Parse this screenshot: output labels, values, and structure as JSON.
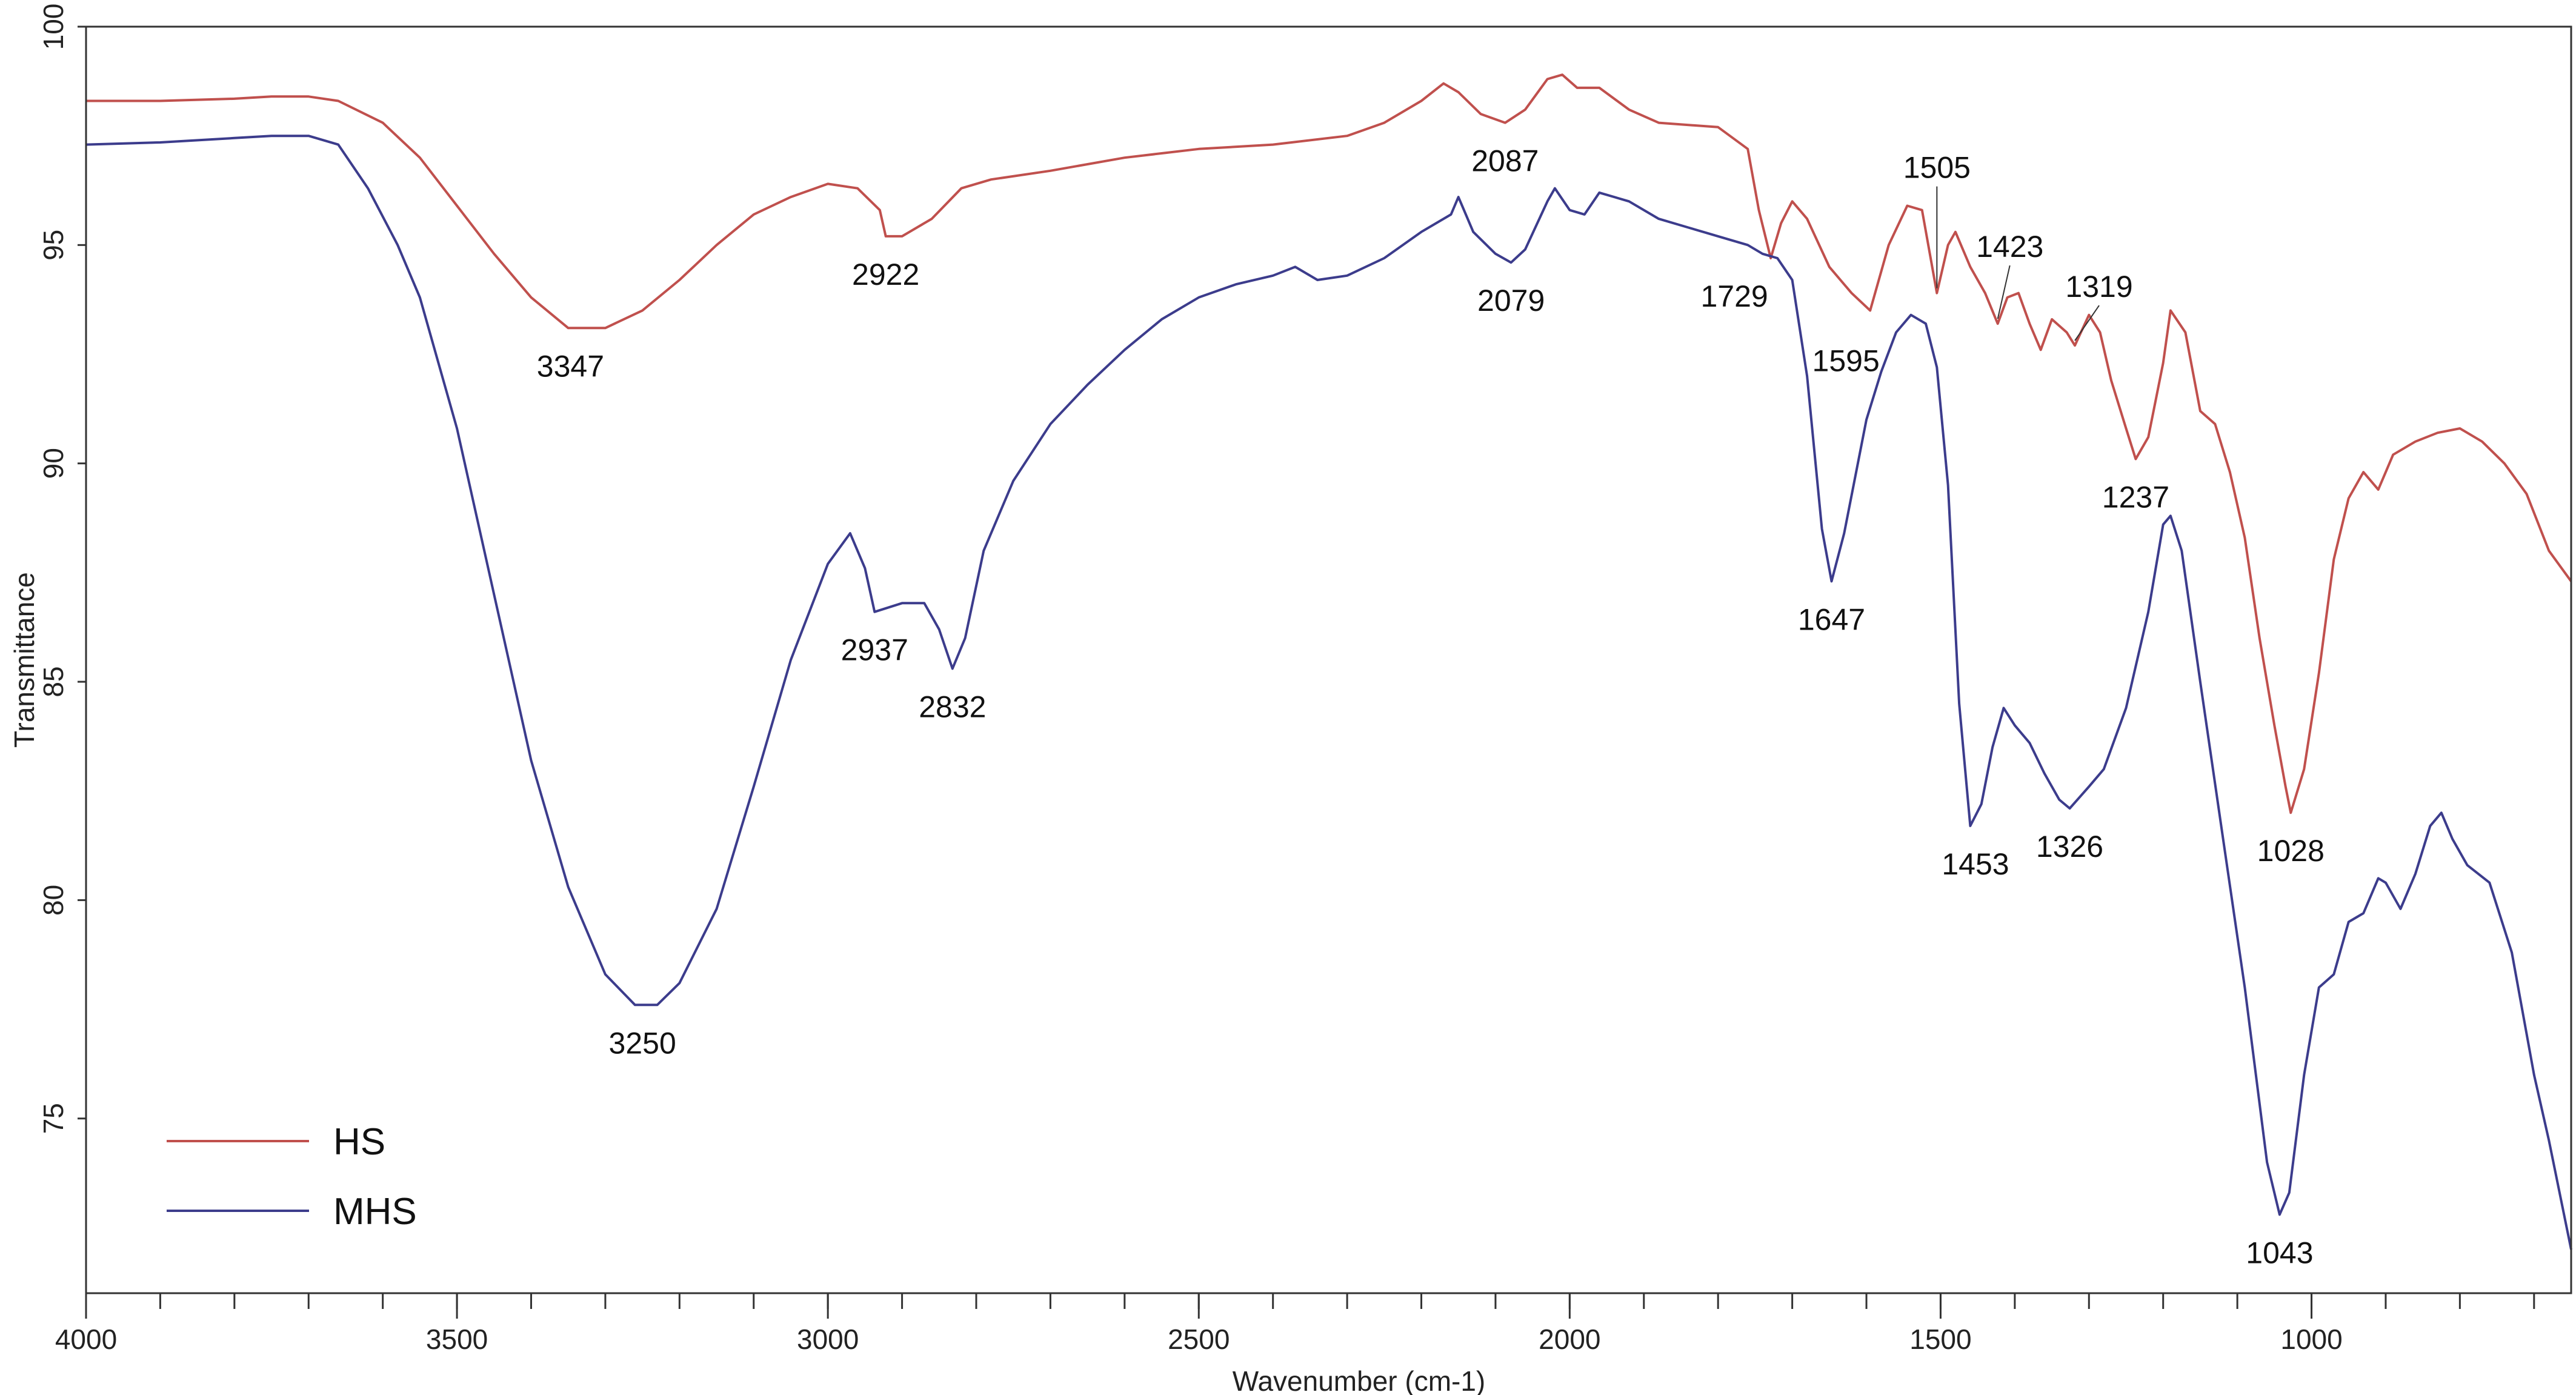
{
  "chart_data": {
    "type": "line",
    "xlabel": "Wavenumber (cm-1)",
    "ylabel": "Transmittance",
    "xlim": [
      4000,
      650
    ],
    "ylim": [
      71,
      100
    ],
    "x_reversed": true,
    "grid": false,
    "legend_position": "bottom-left",
    "x_ticks": [
      4000,
      3500,
      3000,
      2500,
      2000,
      1500,
      1000
    ],
    "x_minor_step": 100,
    "y_ticks": [
      75,
      80,
      85,
      90,
      95,
      100
    ],
    "series": [
      {
        "name": "HS",
        "color": "#c0504d",
        "points": [
          [
            4000,
            98.3
          ],
          [
            3900,
            98.3
          ],
          [
            3800,
            98.35
          ],
          [
            3750,
            98.4
          ],
          [
            3700,
            98.4
          ],
          [
            3660,
            98.3
          ],
          [
            3600,
            97.8
          ],
          [
            3550,
            97.0
          ],
          [
            3500,
            95.9
          ],
          [
            3450,
            94.8
          ],
          [
            3400,
            93.8
          ],
          [
            3350,
            93.1
          ],
          [
            3300,
            93.1
          ],
          [
            3250,
            93.5
          ],
          [
            3200,
            94.2
          ],
          [
            3150,
            95.0
          ],
          [
            3100,
            95.7
          ],
          [
            3050,
            96.1
          ],
          [
            3000,
            96.4
          ],
          [
            2960,
            96.3
          ],
          [
            2930,
            95.8
          ],
          [
            2922,
            95.2
          ],
          [
            2900,
            95.2
          ],
          [
            2860,
            95.6
          ],
          [
            2820,
            96.3
          ],
          [
            2780,
            96.5
          ],
          [
            2700,
            96.7
          ],
          [
            2600,
            97.0
          ],
          [
            2500,
            97.2
          ],
          [
            2400,
            97.3
          ],
          [
            2300,
            97.5
          ],
          [
            2250,
            97.8
          ],
          [
            2200,
            98.3
          ],
          [
            2170,
            98.7
          ],
          [
            2150,
            98.5
          ],
          [
            2120,
            98.0
          ],
          [
            2087,
            97.8
          ],
          [
            2060,
            98.1
          ],
          [
            2030,
            98.8
          ],
          [
            2010,
            98.9
          ],
          [
            1990,
            98.6
          ],
          [
            1960,
            98.6
          ],
          [
            1920,
            98.1
          ],
          [
            1880,
            97.8
          ],
          [
            1800,
            97.7
          ],
          [
            1760,
            97.2
          ],
          [
            1745,
            95.8
          ],
          [
            1729,
            94.7
          ],
          [
            1715,
            95.5
          ],
          [
            1700,
            96.0
          ],
          [
            1680,
            95.6
          ],
          [
            1650,
            94.5
          ],
          [
            1620,
            93.9
          ],
          [
            1595,
            93.5
          ],
          [
            1570,
            95.0
          ],
          [
            1545,
            95.9
          ],
          [
            1525,
            95.8
          ],
          [
            1505,
            93.9
          ],
          [
            1490,
            95.0
          ],
          [
            1480,
            95.3
          ],
          [
            1460,
            94.5
          ],
          [
            1440,
            93.9
          ],
          [
            1423,
            93.2
          ],
          [
            1410,
            93.8
          ],
          [
            1395,
            93.9
          ],
          [
            1380,
            93.2
          ],
          [
            1365,
            92.6
          ],
          [
            1350,
            93.3
          ],
          [
            1330,
            93.0
          ],
          [
            1319,
            92.7
          ],
          [
            1300,
            93.4
          ],
          [
            1285,
            93.0
          ],
          [
            1270,
            91.9
          ],
          [
            1250,
            90.8
          ],
          [
            1237,
            90.1
          ],
          [
            1220,
            90.6
          ],
          [
            1200,
            92.3
          ],
          [
            1190,
            93.5
          ],
          [
            1170,
            93.0
          ],
          [
            1150,
            91.2
          ],
          [
            1130,
            90.9
          ],
          [
            1110,
            89.8
          ],
          [
            1090,
            88.3
          ],
          [
            1070,
            86.0
          ],
          [
            1050,
            84.0
          ],
          [
            1035,
            82.6
          ],
          [
            1028,
            82.0
          ],
          [
            1010,
            83.0
          ],
          [
            990,
            85.2
          ],
          [
            970,
            87.8
          ],
          [
            950,
            89.2
          ],
          [
            930,
            89.8
          ],
          [
            910,
            89.4
          ],
          [
            890,
            90.2
          ],
          [
            860,
            90.5
          ],
          [
            830,
            90.7
          ],
          [
            800,
            90.8
          ],
          [
            770,
            90.5
          ],
          [
            740,
            90.0
          ],
          [
            710,
            89.3
          ],
          [
            680,
            88.0
          ],
          [
            650,
            87.3
          ]
        ]
      },
      {
        "name": "MHS",
        "color": "#3c3c8c",
        "points": [
          [
            4000,
            97.3
          ],
          [
            3900,
            97.35
          ],
          [
            3800,
            97.45
          ],
          [
            3750,
            97.5
          ],
          [
            3700,
            97.5
          ],
          [
            3660,
            97.3
          ],
          [
            3620,
            96.3
          ],
          [
            3580,
            95.0
          ],
          [
            3550,
            93.8
          ],
          [
            3500,
            90.8
          ],
          [
            3450,
            87.0
          ],
          [
            3400,
            83.2
          ],
          [
            3350,
            80.3
          ],
          [
            3300,
            78.3
          ],
          [
            3260,
            77.6
          ],
          [
            3230,
            77.6
          ],
          [
            3200,
            78.1
          ],
          [
            3150,
            79.8
          ],
          [
            3100,
            82.6
          ],
          [
            3050,
            85.5
          ],
          [
            3000,
            87.7
          ],
          [
            2970,
            88.4
          ],
          [
            2950,
            87.6
          ],
          [
            2937,
            86.6
          ],
          [
            2900,
            86.8
          ],
          [
            2870,
            86.8
          ],
          [
            2850,
            86.2
          ],
          [
            2832,
            85.3
          ],
          [
            2815,
            86.0
          ],
          [
            2790,
            88.0
          ],
          [
            2750,
            89.6
          ],
          [
            2700,
            90.9
          ],
          [
            2650,
            91.8
          ],
          [
            2600,
            92.6
          ],
          [
            2550,
            93.3
          ],
          [
            2500,
            93.8
          ],
          [
            2450,
            94.1
          ],
          [
            2400,
            94.3
          ],
          [
            2370,
            94.5
          ],
          [
            2340,
            94.2
          ],
          [
            2300,
            94.3
          ],
          [
            2250,
            94.7
          ],
          [
            2200,
            95.3
          ],
          [
            2160,
            95.7
          ],
          [
            2150,
            96.1
          ],
          [
            2130,
            95.3
          ],
          [
            2100,
            94.8
          ],
          [
            2079,
            94.6
          ],
          [
            2060,
            94.9
          ],
          [
            2030,
            96.0
          ],
          [
            2020,
            96.3
          ],
          [
            2000,
            95.8
          ],
          [
            1980,
            95.7
          ],
          [
            1960,
            96.2
          ],
          [
            1920,
            96.0
          ],
          [
            1880,
            95.6
          ],
          [
            1840,
            95.4
          ],
          [
            1800,
            95.2
          ],
          [
            1760,
            95.0
          ],
          [
            1740,
            94.8
          ],
          [
            1720,
            94.7
          ],
          [
            1700,
            94.2
          ],
          [
            1680,
            92.0
          ],
          [
            1660,
            88.5
          ],
          [
            1647,
            87.3
          ],
          [
            1630,
            88.4
          ],
          [
            1600,
            91.0
          ],
          [
            1580,
            92.1
          ],
          [
            1560,
            93.0
          ],
          [
            1540,
            93.4
          ],
          [
            1520,
            93.2
          ],
          [
            1505,
            92.2
          ],
          [
            1490,
            89.5
          ],
          [
            1475,
            84.5
          ],
          [
            1460,
            81.7
          ],
          [
            1445,
            82.2
          ],
          [
            1430,
            83.5
          ],
          [
            1415,
            84.4
          ],
          [
            1400,
            84.0
          ],
          [
            1380,
            83.6
          ],
          [
            1360,
            82.9
          ],
          [
            1340,
            82.3
          ],
          [
            1326,
            82.1
          ],
          [
            1300,
            82.6
          ],
          [
            1280,
            83.0
          ],
          [
            1250,
            84.4
          ],
          [
            1220,
            86.6
          ],
          [
            1200,
            88.6
          ],
          [
            1190,
            88.8
          ],
          [
            1175,
            88.0
          ],
          [
            1150,
            85.0
          ],
          [
            1120,
            81.5
          ],
          [
            1090,
            78.0
          ],
          [
            1060,
            74.0
          ],
          [
            1043,
            72.8
          ],
          [
            1030,
            73.3
          ],
          [
            1010,
            76.0
          ],
          [
            990,
            78.0
          ],
          [
            970,
            78.3
          ],
          [
            950,
            79.5
          ],
          [
            930,
            79.7
          ],
          [
            910,
            80.5
          ],
          [
            900,
            80.4
          ],
          [
            880,
            79.8
          ],
          [
            860,
            80.6
          ],
          [
            840,
            81.7
          ],
          [
            825,
            82.0
          ],
          [
            810,
            81.4
          ],
          [
            790,
            80.8
          ],
          [
            760,
            80.4
          ],
          [
            730,
            78.8
          ],
          [
            700,
            76.0
          ],
          [
            680,
            74.5
          ],
          [
            650,
            72.0
          ]
        ]
      }
    ],
    "annotations": {
      "HS": [
        {
          "text": "3347",
          "x": 3347,
          "y": 93.1
        },
        {
          "text": "2922",
          "x": 2922,
          "y": 95.2
        },
        {
          "text": "2087",
          "x": 2087,
          "y": 97.8
        },
        {
          "text": "1729",
          "x": 1729,
          "y": 94.7
        },
        {
          "text": "1595",
          "x": 1595,
          "y": 93.5
        },
        {
          "text": "1505",
          "x": 1505,
          "y": 93.9
        },
        {
          "text": "1423",
          "x": 1423,
          "y": 93.2
        },
        {
          "text": "1319",
          "x": 1319,
          "y": 92.7
        },
        {
          "text": "1237",
          "x": 1237,
          "y": 90.1
        },
        {
          "text": "1028",
          "x": 1028,
          "y": 82.0
        }
      ],
      "MHS": [
        {
          "text": "3250",
          "x": 3250,
          "y": 77.6
        },
        {
          "text": "2937",
          "x": 2937,
          "y": 86.6
        },
        {
          "text": "2832",
          "x": 2832,
          "y": 85.3
        },
        {
          "text": "2079",
          "x": 2079,
          "y": 94.6
        },
        {
          "text": "1647",
          "x": 1647,
          "y": 87.3
        },
        {
          "text": "1453",
          "x": 1453,
          "y": 81.7
        },
        {
          "text": "1326",
          "x": 1326,
          "y": 82.1
        },
        {
          "text": "1043",
          "x": 1043,
          "y": 72.8
        }
      ]
    }
  }
}
